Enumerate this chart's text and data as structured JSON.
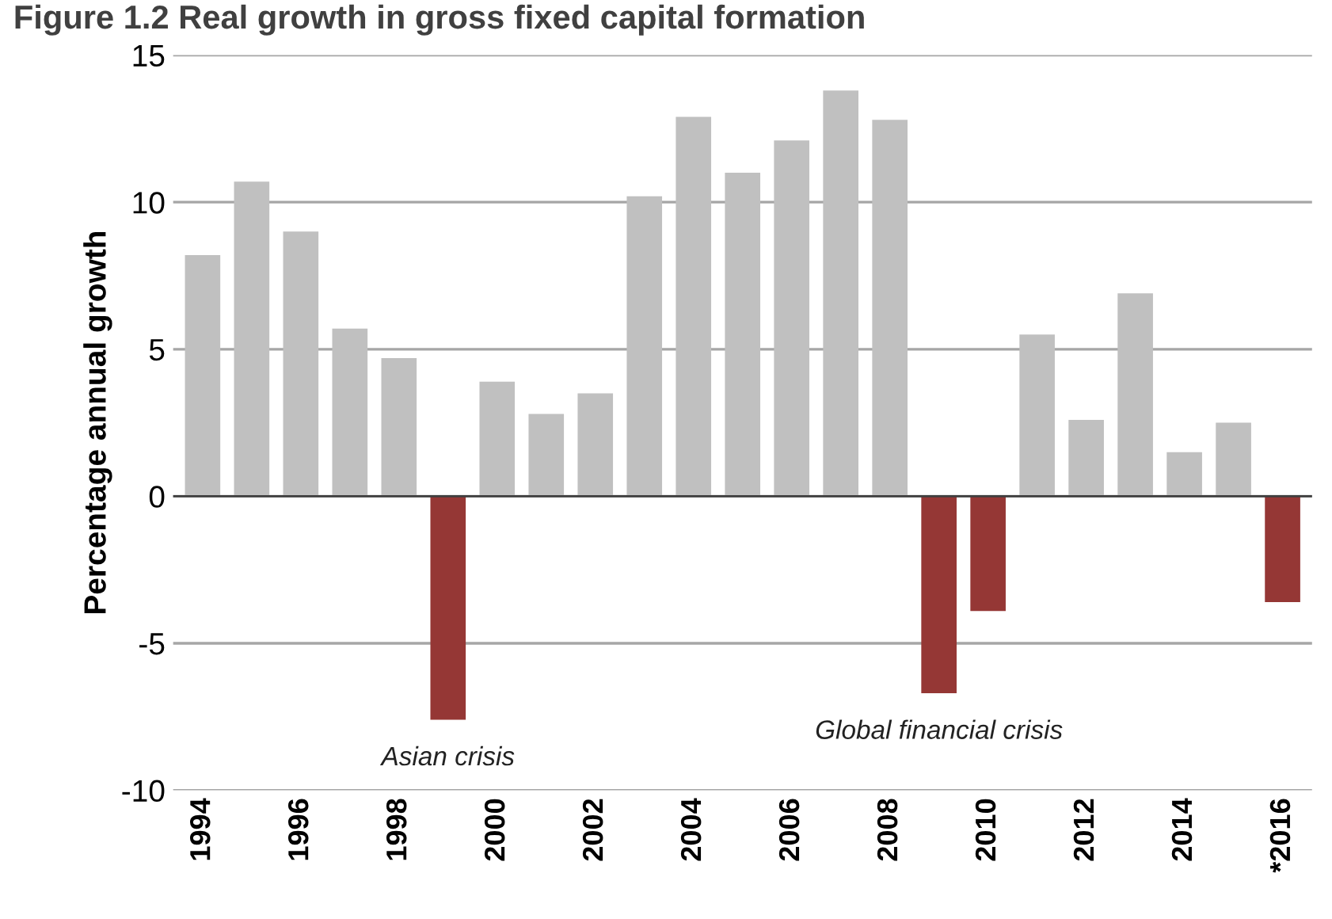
{
  "chart_data": {
    "type": "bar",
    "title": "Figure 1.2 Real growth in gross fixed capital formation",
    "ylabel": "Percentage annual growth",
    "categories": [
      "1994",
      null,
      "1996",
      null,
      "1998",
      null,
      "2000",
      null,
      "2002",
      null,
      "2004",
      null,
      "2006",
      null,
      "2008",
      null,
      "2010",
      null,
      "2012",
      null,
      "2014",
      null,
      "*2016"
    ],
    "values": [
      8.2,
      10.7,
      9.0,
      5.7,
      4.7,
      -7.6,
      3.9,
      2.8,
      3.5,
      10.2,
      12.9,
      11.0,
      12.1,
      13.8,
      12.8,
      -6.7,
      -3.9,
      5.5,
      2.6,
      6.9,
      1.5,
      2.5,
      -3.6
    ],
    "colors": [
      "#c0c0c0",
      "#c0c0c0",
      "#c0c0c0",
      "#c0c0c0",
      "#c0c0c0",
      "#953735",
      "#c0c0c0",
      "#c0c0c0",
      "#c0c0c0",
      "#c0c0c0",
      "#c0c0c0",
      "#c0c0c0",
      "#c0c0c0",
      "#c0c0c0",
      "#c0c0c0",
      "#953735",
      "#953735",
      "#c0c0c0",
      "#c0c0c0",
      "#c0c0c0",
      "#c0c0c0",
      "#c0c0c0",
      "#953735"
    ],
    "ylim": [
      -10,
      15
    ],
    "yticks": [
      -10,
      -5,
      0,
      5,
      10,
      15
    ],
    "grid": "y",
    "annotations": [
      {
        "text": "Asian crisis",
        "y": -7.6
      },
      {
        "text": "Global financial crisis",
        "y": -6.7
      }
    ]
  }
}
